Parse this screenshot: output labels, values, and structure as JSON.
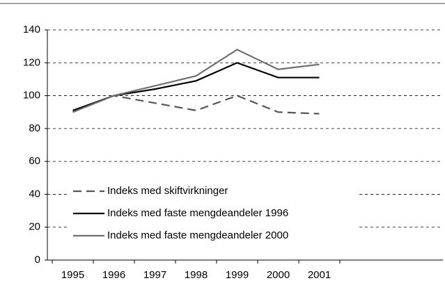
{
  "chart_data": {
    "type": "line",
    "categories": [
      "1995",
      "1996",
      "1997",
      "1998",
      "1999",
      "2000",
      "2001"
    ],
    "series": [
      {
        "name": "Indeks med skiftvirkninger",
        "color": "#555555",
        "dashed": true,
        "values": [
          90,
          100,
          95.5,
          91,
          100,
          90,
          89
        ]
      },
      {
        "name": "Indeks med faste mengdeandeler 1996",
        "color": "#000000",
        "dashed": false,
        "values": [
          91,
          100,
          104,
          109,
          120,
          111,
          111
        ]
      },
      {
        "name": "Indeks med faste mengdeandeler 2000",
        "color": "#707070",
        "dashed": false,
        "values": [
          90,
          100,
          106,
          112,
          128,
          116,
          119
        ]
      }
    ],
    "ylim": [
      0,
      140
    ],
    "yticks": [
      0,
      20,
      40,
      60,
      80,
      100,
      120,
      140
    ],
    "grid": true,
    "legend": "lower left"
  }
}
